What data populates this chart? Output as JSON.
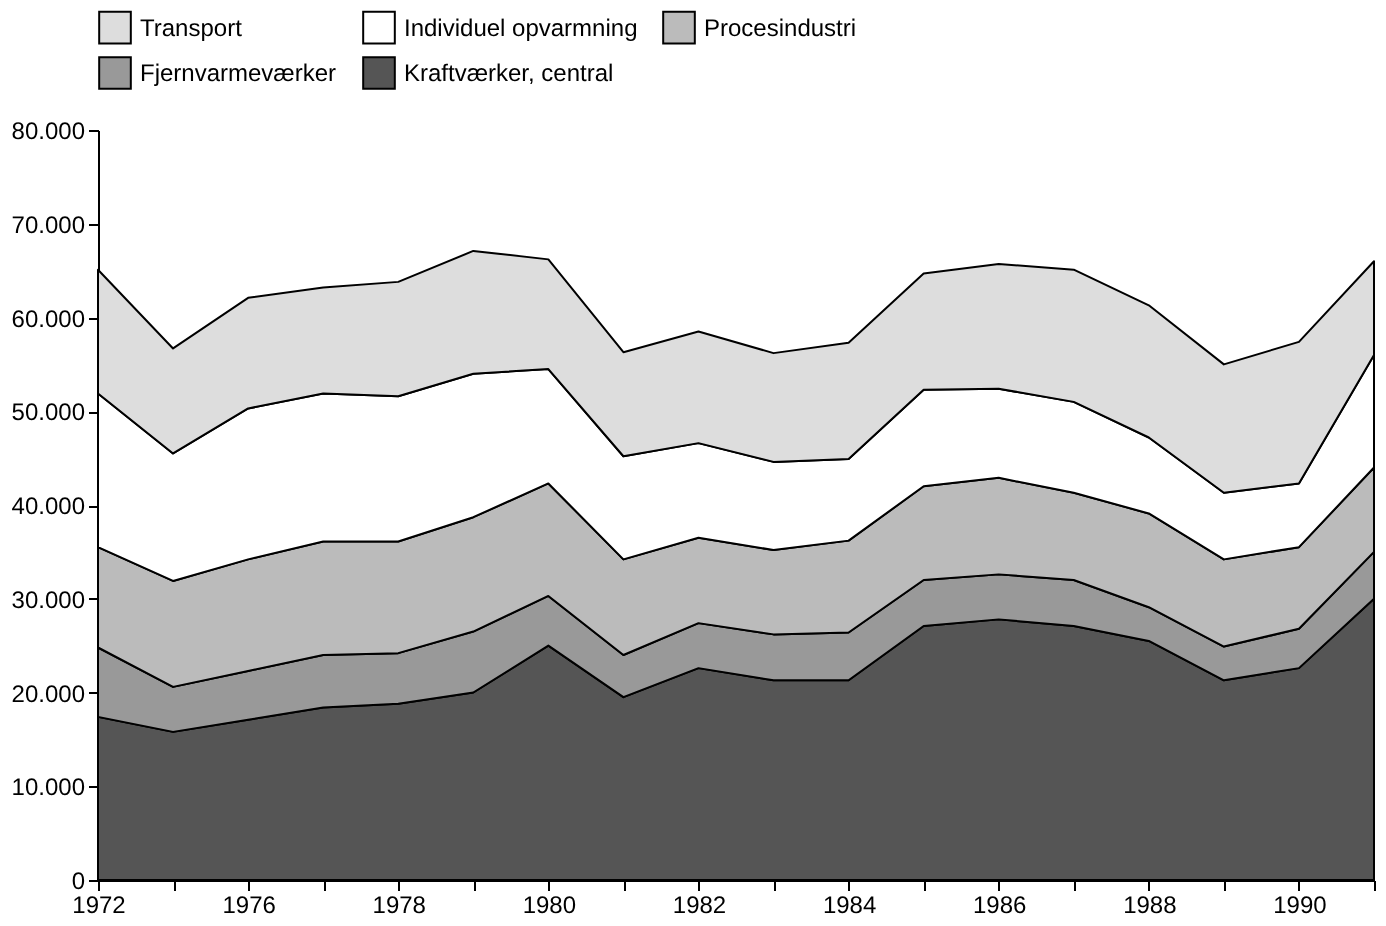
{
  "chart_data": {
    "type": "area",
    "stacked": true,
    "legend": "top",
    "categories": [
      "1972",
      null,
      "1976",
      null,
      "1978",
      null,
      "1980",
      null,
      "1982",
      null,
      "1984",
      null,
      "1986",
      null,
      "1988",
      null,
      "1990",
      null
    ],
    "series": [
      {
        "name": "Kraftværker, central",
        "color": "#555555",
        "values": [
          17400,
          15800,
          17100,
          18400,
          18800,
          20000,
          25000,
          19500,
          22600,
          21300,
          21300,
          27100,
          27800,
          27100,
          25500,
          21300,
          22600,
          30000
        ]
      },
      {
        "name": "Fjernvarmeværker",
        "color": "#999999",
        "values": [
          7400,
          4800,
          5200,
          5600,
          5400,
          6500,
          5300,
          4500,
          4800,
          4900,
          5100,
          4900,
          4800,
          4900,
          3600,
          3600,
          4200,
          5000
        ]
      },
      {
        "name": "Procesindustri",
        "color": "#bbbbbb",
        "values": [
          10700,
          11300,
          11900,
          12100,
          11900,
          12200,
          12000,
          10200,
          9100,
          9000,
          9800,
          10000,
          10300,
          9300,
          10000,
          9300,
          8700,
          9000
        ]
      },
      {
        "name": "Individuel opvarmning",
        "color": "#ffffff",
        "values": [
          16400,
          13600,
          16100,
          15800,
          15500,
          15300,
          12200,
          11000,
          10100,
          9400,
          8700,
          10300,
          9500,
          9700,
          8100,
          7100,
          6800,
          12000
        ]
      },
      {
        "name": "Transport",
        "color": "#dddddd",
        "values": [
          13200,
          11200,
          11800,
          11300,
          12200,
          13100,
          11700,
          11100,
          11900,
          11600,
          12400,
          12400,
          13300,
          14100,
          14100,
          13700,
          15100,
          10000
        ]
      }
    ],
    "ylim": [
      0,
      80000
    ],
    "yticks": [
      {
        "value": 0,
        "label": "0"
      },
      {
        "value": 10000,
        "label": "10.000"
      },
      {
        "value": 20000,
        "label": "20.000"
      },
      {
        "value": 30000,
        "label": "30.000"
      },
      {
        "value": 40000,
        "label": "40.000"
      },
      {
        "value": 50000,
        "label": "50.000"
      },
      {
        "value": 60000,
        "label": "60.000"
      },
      {
        "value": 70000,
        "label": "70.000"
      },
      {
        "value": 80000,
        "label": "80.000"
      }
    ],
    "grid": false
  }
}
